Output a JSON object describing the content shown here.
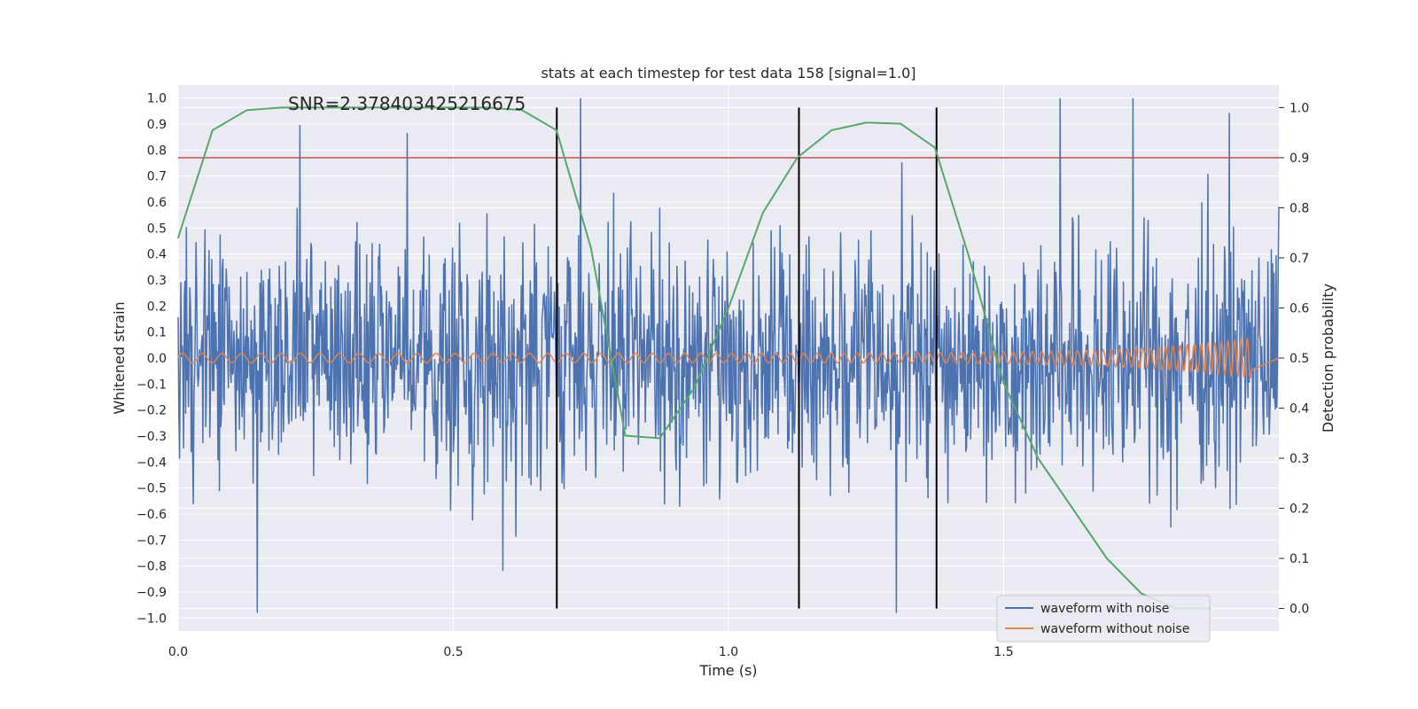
{
  "chart_data": {
    "type": "line",
    "title": "stats at each timestep for test data 158 [signal=1.0]",
    "annotation": "SNR=2.378403425216675",
    "xlabel": "Time (s)",
    "ylabel_left": "Whitened strain",
    "ylabel_right": "Detection probability",
    "xlim": [
      0.0,
      2.0
    ],
    "ylim_left": [
      -1.05,
      1.05
    ],
    "ylim_right": [
      -0.045,
      1.045
    ],
    "xticks": [
      "0.0",
      "0.5",
      "1.0",
      "1.5"
    ],
    "yticks_left": [
      "1.0",
      "0.9",
      "0.8",
      "0.7",
      "0.6",
      "0.5",
      "0.4",
      "0.3",
      "0.2",
      "0.1",
      "0.0",
      "−0.1",
      "−0.2",
      "−0.3",
      "−0.4",
      "−0.5",
      "−0.6",
      "−0.7",
      "−0.8",
      "−0.9",
      "−1.0"
    ],
    "yticks_right": [
      "1.0",
      "0.9",
      "0.8",
      "0.7",
      "0.6",
      "0.5",
      "0.4",
      "0.3",
      "0.2",
      "0.1",
      "0.0"
    ],
    "threshold": 0.9,
    "vlines_x": [
      0.688,
      1.128,
      1.378
    ],
    "grid": true,
    "legend_position": "lower-right",
    "series": [
      {
        "name": "waveform with noise",
        "axis": "left",
        "color": "#4c72b0",
        "t_end": 2.0,
        "noise_amplitude": 0.3
      },
      {
        "name": "waveform without noise",
        "axis": "left",
        "color": "#dd8452",
        "t_end": 1.95,
        "description_shape": "chirp"
      },
      {
        "name": "",
        "axis": "right",
        "color": "#55a868",
        "x": [
          0.0,
          0.0625,
          0.125,
          0.1875,
          0.25,
          0.3125,
          0.375,
          0.4375,
          0.5,
          0.5625,
          0.625,
          0.6875,
          0.75,
          0.8125,
          0.875,
          0.9375,
          1.0,
          1.0625,
          1.125,
          1.1875,
          1.25,
          1.3125,
          1.375,
          1.4375,
          1.5,
          1.5625,
          1.625,
          1.6875,
          1.75,
          1.8125,
          1.875
        ],
        "y": [
          0.74,
          0.955,
          0.995,
          1.0,
          1.0,
          1.0,
          1.0,
          1.0,
          1.0,
          1.0,
          0.995,
          0.955,
          0.72,
          0.345,
          0.34,
          0.44,
          0.6,
          0.79,
          0.9,
          0.955,
          0.97,
          0.968,
          0.92,
          0.7,
          0.45,
          0.3,
          0.2,
          0.1,
          0.03,
          0.0,
          0.0
        ]
      }
    ],
    "threshold_color": "#c44e52"
  }
}
